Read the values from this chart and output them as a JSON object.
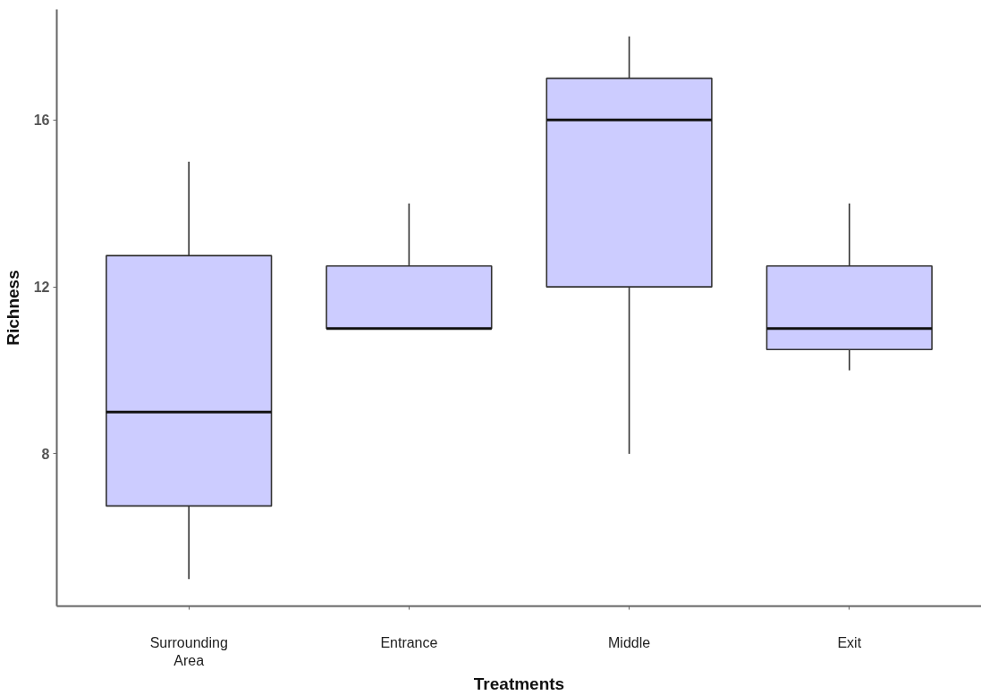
{
  "chart_data": {
    "type": "box",
    "xlabel": "Treatments",
    "ylabel": "Richness",
    "categories": [
      "Surrounding Area",
      "Entrance",
      "Middle",
      "Exit"
    ],
    "color": "#ccccff",
    "boxes": [
      {
        "low": 5,
        "q1": 6.75,
        "median": 9,
        "q3": 12.75,
        "high": 15
      },
      {
        "low": 11,
        "q1": 11,
        "median": 11,
        "q3": 12.5,
        "high": 14
      },
      {
        "low": 8,
        "q1": 12,
        "median": 16,
        "q3": 17,
        "high": 18
      },
      {
        "low": 10,
        "q1": 10.5,
        "median": 11,
        "q3": 12.5,
        "high": 14
      }
    ],
    "ylim": [
      4.35,
      18.65
    ],
    "yticks": [
      8,
      12,
      16
    ],
    "grid": false
  }
}
